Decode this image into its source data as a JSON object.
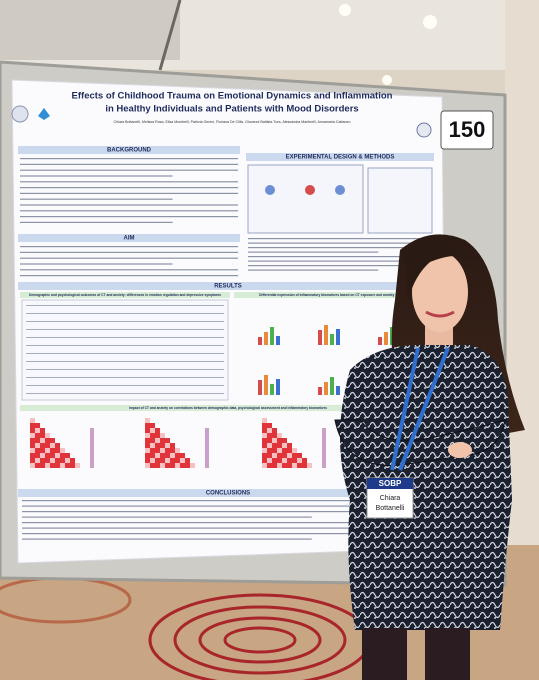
{
  "poster": {
    "title_lines": [
      "Effects of Childhood Trauma on Emotional Dynamics and Inflammation",
      "in Healthy Individuals and Patients with Mood Disorders"
    ],
    "authors": "Chiara Bottanelli, Melissa Rosa, Elisa Mombelli, Patrizia Genini, Floriana De Cillis, Giovanni Battista Tura, Alessandra Martinelli, Annamaria Cattaneo",
    "sections": {
      "background": "BACKGROUND",
      "methods": "EXPERIMENTAL DESIGN & METHODS",
      "aim": "AIM",
      "results": "RESULTS",
      "conclusions": "CONCLUSIONS"
    },
    "result_subtitles": [
      "Demographic and psychological outcomes of CT and anxiety: differences in emotion regulation and depressive symptoms",
      "Differential expression of inflammatory biomarkers based on CT exposure and anxiety outcomes",
      "Impact of CT and anxiety on correlations between demographic data, psychological assessment and inflammatory biomarkers"
    ]
  },
  "board_number": "150",
  "badge": {
    "org": "SOBP",
    "first_name": "Chiara",
    "last_name": "Bottanelli"
  }
}
